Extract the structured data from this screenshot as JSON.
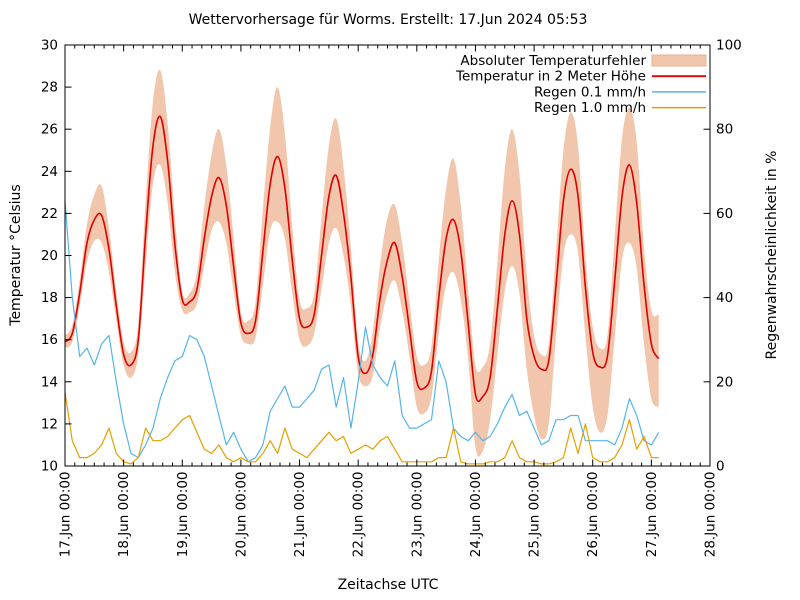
{
  "chart_data": {
    "type": "line",
    "title": "Wettervorhersage für Worms. Erstellt: 17.Jun 2024 05:53",
    "xlabel": "Zeitachse UTC",
    "ylabel_left": "Temperatur °Celsius",
    "ylabel_right": "Regenwahrscheinlichkeit in %",
    "grid": false,
    "legend_position": "top-right",
    "x_axis": {
      "tick_labels": [
        "17.Jun 00:00",
        "18.Jun 00:00",
        "19.Jun 00:00",
        "20.Jun 00:00",
        "21.Jun 00:00",
        "22.Jun 00:00",
        "23.Jun 00:00",
        "24.Jun 00:00",
        "25.Jun 00:00",
        "26.Jun 00:00",
        "27.Jun 00:00",
        "28.Jun 00:00"
      ],
      "major_tick_hours": 24,
      "minor_tick_hours": 4,
      "range_hours": 264
    },
    "y_left": {
      "min": 10,
      "max": 30,
      "ticks": [
        10,
        12,
        14,
        16,
        18,
        20,
        22,
        24,
        26,
        28,
        30
      ]
    },
    "y_right": {
      "min": 0,
      "max": 100,
      "ticks": [
        0,
        20,
        40,
        60,
        80,
        100
      ]
    },
    "time": {
      "start_hours": 0,
      "step_hours": 3,
      "points": 82
    },
    "series": [
      {
        "name": "Absoluter Temperaturfehler",
        "kind": "band",
        "axis": "left",
        "color": "#f2c6ac",
        "edge_color": "#e3b493",
        "upper": [
          16.2,
          16.7,
          18.8,
          21.5,
          22.9,
          23.3,
          21.3,
          18.3,
          15.9,
          15.4,
          16.8,
          22.6,
          27.3,
          28.8,
          26.3,
          21.8,
          18.3,
          18.2,
          19.2,
          22.3,
          24.8,
          26.0,
          24.3,
          20.9,
          17.3,
          16.9,
          17.8,
          22.2,
          26.1,
          28.0,
          25.8,
          21.4,
          17.9,
          17.5,
          18.2,
          21.8,
          25.2,
          26.5,
          24.2,
          20.4,
          15.9,
          15.0,
          16.4,
          19.6,
          21.8,
          22.4,
          20.6,
          17.8,
          15.2,
          14.8,
          15.7,
          19.8,
          23.2,
          24.6,
          22.4,
          18.4,
          14.8,
          14.7,
          15.8,
          19.7,
          24.1,
          26.0,
          23.9,
          19.1,
          16.2,
          15.3,
          15.8,
          20.3,
          25.0,
          26.8,
          25.2,
          20.0,
          16.6,
          15.6,
          16.2,
          20.9,
          25.6,
          27.0,
          25.4,
          20.4,
          17.4,
          17.2
        ],
        "lower": [
          15.6,
          15.9,
          17.6,
          19.7,
          20.7,
          20.6,
          19.2,
          16.9,
          14.8,
          14.2,
          15.3,
          19.5,
          23.4,
          24.3,
          22.5,
          19.2,
          17.4,
          17.3,
          17.7,
          19.5,
          21.2,
          21.6,
          20.6,
          18.3,
          16.2,
          15.8,
          16.1,
          18.6,
          21.2,
          21.6,
          20.8,
          18.2,
          16.0,
          15.7,
          16.3,
          18.4,
          20.6,
          21.3,
          20.0,
          17.6,
          14.4,
          13.8,
          14.3,
          16.6,
          18.2,
          18.8,
          17.4,
          15.2,
          12.8,
          12.5,
          13.3,
          16.3,
          18.6,
          19.2,
          17.9,
          15.1,
          10.9,
          10.7,
          12.2,
          15.3,
          18.3,
          19.5,
          18.2,
          14.6,
          12.4,
          11.3,
          12.0,
          16.2,
          20.0,
          21.0,
          20.1,
          16.2,
          12.8,
          11.6,
          12.4,
          16.1,
          19.8,
          20.6,
          19.4,
          15.8,
          13.2,
          12.8
        ]
      },
      {
        "name": "Temperatur in 2 Meter Höhe",
        "kind": "line",
        "axis": "left",
        "color": "#dd0000",
        "width": 1.6,
        "smooth": true,
        "values": [
          15.9,
          16.3,
          18.2,
          20.6,
          21.7,
          21.9,
          20.3,
          17.6,
          15.3,
          14.8,
          16.0,
          21.0,
          25.2,
          26.6,
          24.5,
          20.5,
          17.9,
          17.8,
          18.4,
          20.8,
          22.8,
          23.7,
          22.4,
          19.5,
          16.8,
          16.3,
          16.9,
          20.2,
          23.4,
          24.7,
          23.2,
          19.8,
          17.0,
          16.6,
          17.2,
          20.0,
          22.8,
          23.8,
          22.0,
          19.0,
          15.2,
          14.4,
          15.3,
          18.0,
          19.8,
          20.6,
          19.0,
          16.5,
          14.0,
          13.7,
          14.5,
          18.0,
          20.8,
          21.7,
          20.2,
          16.8,
          13.4,
          13.3,
          14.2,
          17.5,
          21.0,
          22.6,
          21.0,
          17.0,
          15.2,
          14.6,
          15.0,
          18.6,
          22.6,
          24.1,
          22.8,
          18.5,
          15.4,
          14.7,
          15.2,
          18.8,
          22.8,
          24.3,
          22.5,
          18.6,
          15.8,
          15.1
        ]
      },
      {
        "name": "Regen 0.1 mm/h",
        "kind": "line",
        "axis": "right",
        "color": "#56b4e9",
        "width": 1.2,
        "smooth": false,
        "values": [
          63,
          40,
          26,
          28,
          24,
          29,
          31,
          20,
          10,
          3,
          2,
          5,
          9,
          16,
          21,
          25,
          26,
          31,
          30,
          26,
          19,
          12,
          5,
          8,
          4,
          1,
          2,
          5,
          13,
          16,
          19,
          14,
          14,
          16,
          18,
          23,
          24,
          14,
          21,
          9,
          20,
          33,
          24,
          21,
          19,
          25,
          12,
          9,
          9,
          10,
          11,
          25,
          20,
          9,
          7,
          6,
          8,
          6,
          7,
          10,
          14,
          17,
          12,
          13,
          9,
          5,
          6,
          11,
          11,
          12,
          12,
          6,
          6,
          6,
          6,
          5,
          9,
          16,
          12,
          6,
          5,
          8
        ]
      },
      {
        "name": "Regen 1.0 mm/h",
        "kind": "line",
        "axis": "right",
        "color": "#e69f00",
        "width": 1.2,
        "smooth": false,
        "values": [
          17.5,
          6,
          2,
          2,
          3,
          5,
          9,
          3,
          1,
          0.5,
          2,
          9,
          6,
          6,
          7,
          9,
          11,
          12,
          8,
          4,
          3,
          5,
          2,
          1,
          2,
          1,
          1,
          3,
          6,
          3,
          9,
          4,
          3,
          2,
          4,
          6,
          8,
          6,
          7,
          3,
          4,
          5,
          4,
          6,
          7,
          4,
          1,
          1,
          1,
          1,
          1,
          2,
          2,
          9,
          1,
          0.5,
          0.5,
          0.5,
          1,
          1,
          2,
          6,
          2,
          1,
          1,
          0.5,
          0.5,
          1,
          2,
          9,
          3,
          10,
          2,
          1,
          1,
          2,
          5,
          11,
          4,
          7,
          2,
          2
        ]
      }
    ]
  }
}
